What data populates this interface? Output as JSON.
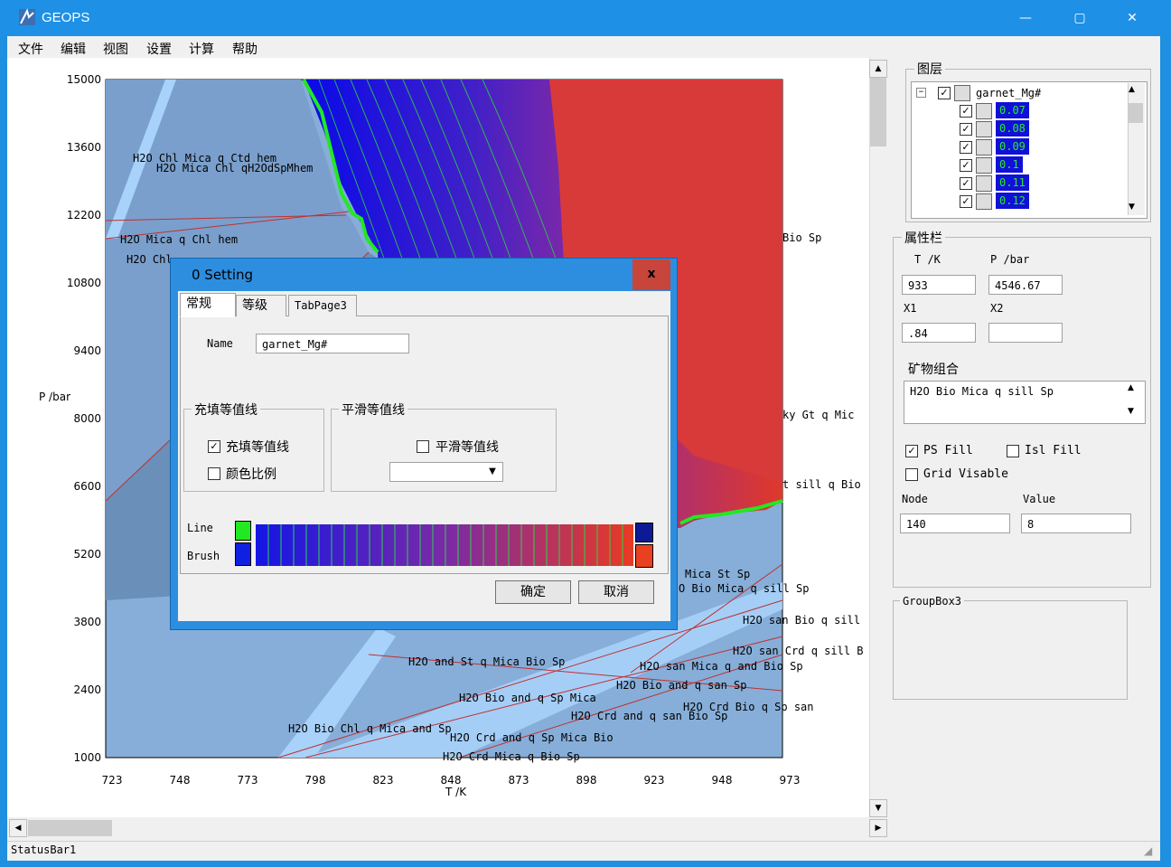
{
  "window": {
    "title": "GEOPS",
    "minimize": "—",
    "maximize": "▢",
    "close": "✕"
  },
  "menu": [
    "文件",
    "编辑",
    "视图",
    "设置",
    "计算",
    "帮助"
  ],
  "plot": {
    "y_axis_label": "P /bar",
    "x_axis_label": "T /K",
    "y_ticks": [
      "15000",
      "13600",
      "12200",
      "10800",
      "9400",
      "8000",
      "6600",
      "5200",
      "3800",
      "2400",
      "1000"
    ],
    "x_ticks": [
      "723",
      "748",
      "773",
      "798",
      "823",
      "848",
      "873",
      "898",
      "923",
      "948",
      "973"
    ],
    "labels": [
      "H2O Chl Mica q Ctd hem",
      "H2O Mica Chl qH2OdSpMhem",
      "H2O Mica q Chl hem",
      "H2O Chl",
      "Bio Sp",
      "ky Gt q Mic",
      "t sill q Bio",
      "Mica St Sp",
      "O Bio Mica q sill Sp",
      "H2O san Bio q sill",
      "H2O san Crd q sill B",
      "H2O and St q Mica Bio Sp",
      "H2O san Mica q and Bio Sp",
      "H2O Bio and q san Sp",
      "H2O Bio and q Sp Mica",
      "H2O Crd Bio q Sp san",
      "H2O Crd and q san Bio Sp",
      "H2O Bio Chl q Mica and Sp",
      "H2O Crd and q Sp Mica Bio",
      "H2O Crd Mica q Bio Sp"
    ]
  },
  "statusbar": "StatusBar1",
  "right": {
    "layers_title": "图层",
    "layer_root": "garnet_Mg#",
    "layer_items": [
      "0.07",
      "0.08",
      "0.09",
      "0.1",
      "0.11",
      "0.12"
    ],
    "props_title": "属性栏",
    "t_label": "T /K",
    "p_label": "P /bar",
    "t_value": "933",
    "p_value": "4546.67",
    "x1_label": "X1",
    "x2_label": "X2",
    "x1_value": ".84",
    "x2_value": "",
    "mineral_title": "矿物组合",
    "mineral_value": "H2O Bio Mica q sill Sp",
    "ps_fill": "PS Fill",
    "isl_fill": "Isl Fill",
    "grid_visible": "Grid Visable",
    "node_label": "Node",
    "value_label": "Value",
    "node_value": "140",
    "value_value": "8",
    "groupbox3": "GroupBox3"
  },
  "dialog": {
    "title": "0 Setting",
    "close": "x",
    "tabs": [
      "常规",
      "等级",
      "TabPage3"
    ],
    "name_label": "Name",
    "name_value": "garnet_Mg#",
    "fill_group": "充填等值线",
    "fill_check": "充填等值线",
    "color_scale": "颜色比例",
    "smooth_group": "平滑等值线",
    "smooth_check": "平滑等值线",
    "line_label": "Line",
    "brush_label": "Brush",
    "ok": "确定",
    "cancel": "取消"
  },
  "colors": {
    "titlebar": "#1e90e6",
    "plot_base": "#86aed9",
    "contour_blue": "#1010e0",
    "contour_red": "#e0382a",
    "line_green": "#22e822"
  }
}
